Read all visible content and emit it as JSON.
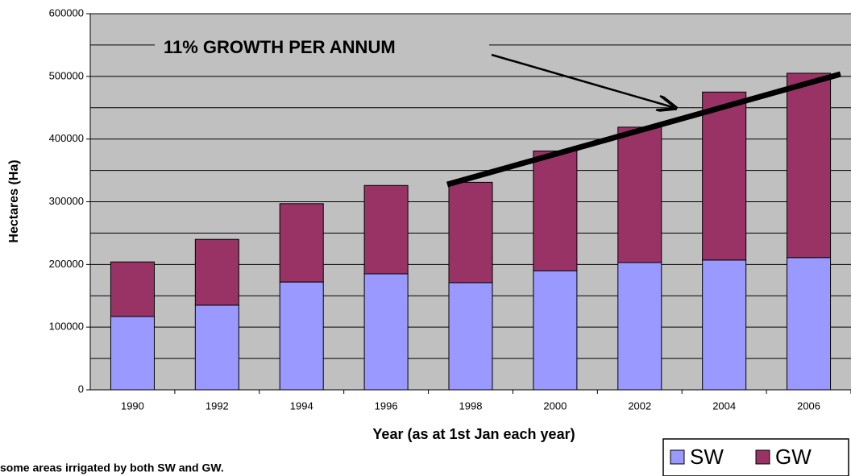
{
  "chart_data": {
    "type": "stacked_bar",
    "y_label": "Hectares (Ha)",
    "x_label": "Year (as at 1st Jan each year)",
    "annotation": "11% GROWTH PER ANNUM",
    "footnote": "some areas irrigated by both SW and GW.",
    "categories": [
      "1990",
      "1992",
      "1994",
      "1996",
      "1998",
      "2000",
      "2002",
      "2004",
      "2006"
    ],
    "series": [
      {
        "name": "SW",
        "color": "#9999ff",
        "values": [
          117000,
          135000,
          172000,
          185000,
          171000,
          190000,
          203000,
          207000,
          211000
        ]
      },
      {
        "name": "GW",
        "color": "#993366",
        "values": [
          87000,
          105000,
          125000,
          141000,
          160000,
          191000,
          216000,
          268000,
          294000
        ]
      }
    ],
    "ylim": [
      0,
      600000
    ],
    "yticks": [
      0,
      100000,
      200000,
      300000,
      400000,
      500000,
      600000
    ],
    "minor_yticks": [
      50000,
      150000,
      250000,
      350000,
      450000,
      550000
    ],
    "grid": true,
    "plot_background": "#c0c0c0",
    "legend": "bottom-right"
  }
}
